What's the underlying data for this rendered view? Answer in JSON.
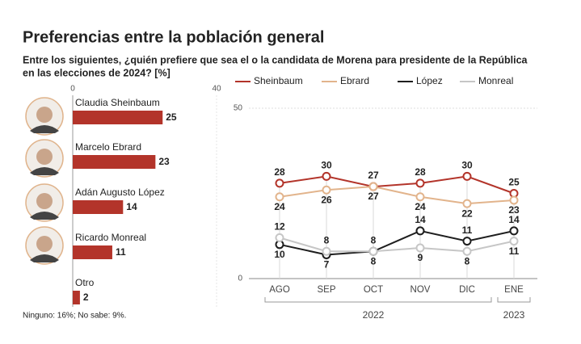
{
  "title": "Preferencias entre la población general",
  "subtitle": [
    "Entre los siguientes, ¿quién prefiere que sea el o la candidata de Morena para presidente de la República",
    "en las elecciones de 2024? [%]"
  ],
  "note": "Ninguno: 16%; No sabe: 9%.",
  "chart_data": [
    {
      "type": "bar",
      "categories": [
        "Claudia Sheinbaum",
        "Marcelo Ebrard",
        "Adán Augusto López",
        "Ricardo Monreal",
        "Otro"
      ],
      "values": [
        25,
        23,
        14,
        11,
        2
      ],
      "color": "#b3342a",
      "xlim": [
        0,
        40
      ],
      "xticks": [
        0,
        40
      ]
    },
    {
      "type": "line",
      "categories": [
        "AGO",
        "SEP",
        "OCT",
        "NOV",
        "DIC",
        "ENE"
      ],
      "year_labels": [
        "2022",
        "2023"
      ],
      "series": [
        {
          "name": "Sheinbaum",
          "color": "#b3342a",
          "values": [
            28,
            30,
            27,
            28,
            30,
            25
          ]
        },
        {
          "name": "Ebrard",
          "color": "#e2b48c",
          "values": [
            24,
            26,
            27,
            24,
            22,
            23
          ]
        },
        {
          "name": "López",
          "color": "#1e1e1e",
          "values": [
            10,
            7,
            8,
            14,
            11,
            14
          ]
        },
        {
          "name": "Monreal",
          "color": "#c6c6c6",
          "values": [
            12,
            8,
            8,
            9,
            8,
            11
          ]
        }
      ],
      "ylim": [
        0,
        50
      ],
      "yticks": [
        0,
        50
      ]
    }
  ]
}
